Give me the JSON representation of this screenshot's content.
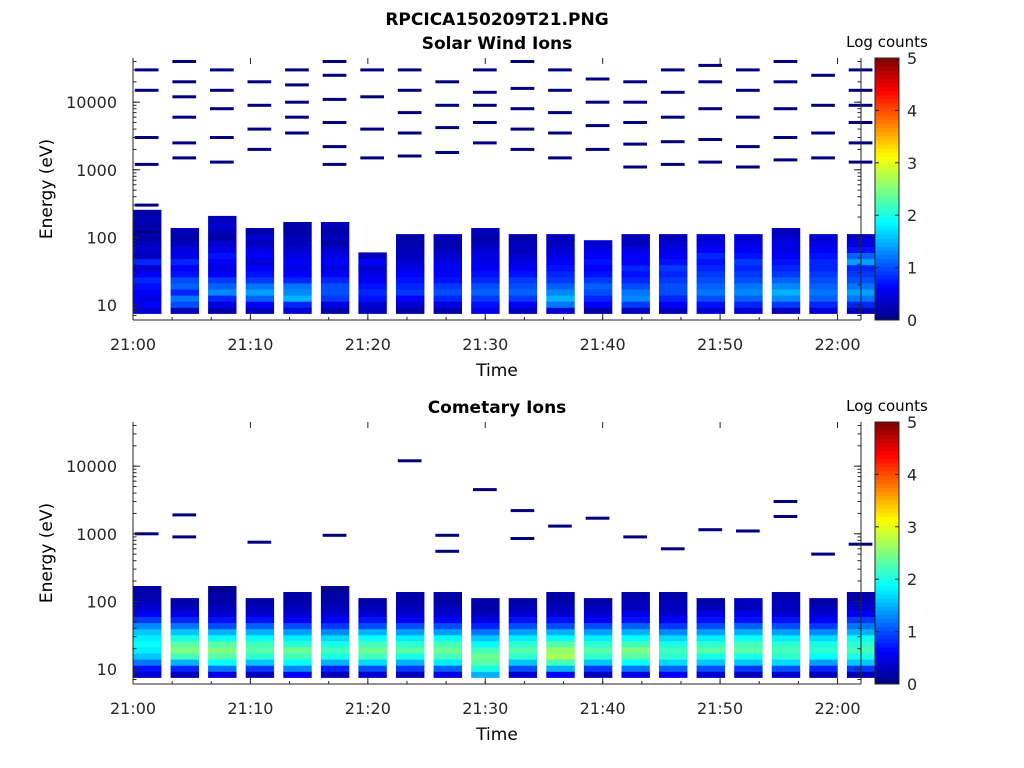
{
  "figure": {
    "title": "RPCICA150209T21.PNG"
  },
  "colormap": {
    "name": "jet",
    "colors": [
      "#00007f",
      "#0000ff",
      "#007fff",
      "#00ffff",
      "#7fff7f",
      "#ffff00",
      "#ff7f00",
      "#ff0000",
      "#7f0000"
    ]
  },
  "chart_data": [
    {
      "type": "heatmap",
      "title": "Solar Wind Ions",
      "xlabel": "Time",
      "ylabel": "Energy (eV)",
      "x_tick_labels": [
        "21:00",
        "21:10",
        "21:20",
        "21:30",
        "21:40",
        "21:50",
        "22:00"
      ],
      "x_range_minutes": [
        0,
        62
      ],
      "y_scale": "log",
      "y_range": [
        6,
        45000
      ],
      "y_tick_values": [
        10,
        100,
        1000,
        10000
      ],
      "y_tick_labels": [
        "10",
        "100",
        "1000",
        "10000"
      ],
      "colorbar": {
        "label": "Log counts",
        "range": [
          0,
          5
        ],
        "tick_labels": [
          "0",
          "1",
          "2",
          "3",
          "4",
          "5"
        ]
      },
      "columns": [
        {
          "t": 0.0,
          "levels": [
            0.4,
            0.6,
            0.5,
            0.6,
            0.7,
            0.8,
            0.6,
            0.4,
            0.8,
            0.3,
            0.4,
            0.3,
            0.2,
            0.3,
            0.2,
            0.3,
            0.2
          ],
          "spikes": [
            120,
            300,
            1200,
            3000,
            15000,
            30000
          ]
        },
        {
          "t": 3.2,
          "levels": [
            0.3,
            1.0,
            1.2,
            0.8,
            1.1,
            1.0,
            0.7,
            0.6,
            0.8,
            0.5,
            0.5,
            0.3,
            0.2,
            0.3
          ],
          "spikes": [
            1500,
            2500,
            6000,
            12000,
            20000,
            40000
          ]
        },
        {
          "t": 6.4,
          "levels": [
            0.2,
            0.5,
            0.8,
            1.3,
            1.1,
            0.9,
            0.6,
            0.5,
            0.6,
            0.7,
            0.5,
            0.4,
            0.2,
            0.3,
            0.4,
            0.3
          ],
          "spikes": [
            1300,
            3000,
            8000,
            15000,
            30000
          ]
        },
        {
          "t": 9.6,
          "levels": [
            0.3,
            0.6,
            1.1,
            1.4,
            1.2,
            0.9,
            0.7,
            0.6,
            0.4,
            0.6,
            0.5,
            0.3,
            0.4,
            0.2
          ],
          "spikes": [
            2000,
            4000,
            9000,
            20000
          ]
        },
        {
          "t": 12.8,
          "levels": [
            0.4,
            0.8,
            1.5,
            1.3,
            1.2,
            0.8,
            0.6,
            0.5,
            0.6,
            0.5,
            0.4,
            0.3,
            0.3,
            0.2,
            0.2
          ],
          "spikes": [
            3500,
            6000,
            10000,
            18000,
            30000
          ]
        },
        {
          "t": 16.0,
          "levels": [
            0.2,
            0.5,
            0.9,
            1.0,
            1.0,
            0.8,
            0.6,
            0.5,
            0.6,
            0.5,
            0.4,
            0.2,
            0.3,
            0.2,
            0.3
          ],
          "spikes": [
            1200,
            2200,
            5000,
            11000,
            25000,
            40000
          ]
        },
        {
          "t": 19.2,
          "levels": [
            0.3,
            0.4,
            0.7,
            0.8,
            0.7,
            0.6,
            0.5,
            0.4,
            0.6,
            0.3
          ],
          "spikes": [
            1500,
            4000,
            12000,
            30000
          ]
        },
        {
          "t": 22.4,
          "levels": [
            0.2,
            0.4,
            0.6,
            0.9,
            0.8,
            0.7,
            0.6,
            0.5,
            0.4,
            0.3,
            0.3,
            0.2,
            0.2
          ],
          "spikes": [
            1600,
            3500,
            7000,
            15000,
            30000
          ]
        },
        {
          "t": 25.6,
          "levels": [
            0.2,
            0.5,
            0.8,
            1.0,
            0.9,
            0.7,
            0.6,
            0.6,
            0.5,
            0.4,
            0.3,
            0.2,
            0.3
          ],
          "spikes": [
            1800,
            4200,
            9000,
            20000
          ]
        },
        {
          "t": 28.8,
          "levels": [
            0.5,
            0.7,
            0.9,
            1.1,
            1.0,
            0.8,
            0.7,
            0.6,
            0.5,
            0.5,
            0.4,
            0.3,
            0.2,
            0.3
          ],
          "spikes": [
            2500,
            5000,
            9000,
            14000,
            30000
          ]
        },
        {
          "t": 32.0,
          "levels": [
            0.3,
            0.6,
            0.9,
            1.1,
            1.0,
            0.9,
            0.7,
            0.6,
            0.5,
            0.4,
            0.3,
            0.3,
            0.2
          ],
          "spikes": [
            2000,
            4000,
            8000,
            16000,
            40000
          ]
        },
        {
          "t": 35.2,
          "levels": [
            0.4,
            1.2,
            1.5,
            1.3,
            1.1,
            0.9,
            0.8,
            0.7,
            0.6,
            0.5,
            0.4,
            0.3,
            0.3
          ],
          "spikes": [
            1500,
            3500,
            7000,
            15000,
            30000
          ]
        },
        {
          "t": 38.4,
          "levels": [
            0.2,
            0.6,
            0.8,
            1.0,
            1.1,
            0.9,
            0.7,
            0.6,
            0.7,
            0.6,
            0.5,
            0.4
          ],
          "spikes": [
            2000,
            4500,
            10000,
            22000
          ]
        },
        {
          "t": 41.6,
          "levels": [
            0.3,
            0.9,
            1.3,
            1.2,
            1.0,
            0.8,
            0.7,
            0.8,
            0.6,
            0.6,
            0.5,
            0.3,
            0.3
          ],
          "spikes": [
            1100,
            2400,
            5000,
            10000,
            20000
          ]
        },
        {
          "t": 44.8,
          "levels": [
            0.3,
            0.6,
            0.8,
            1.0,
            1.0,
            0.9,
            0.8,
            0.9,
            0.7,
            0.6,
            0.5,
            0.4,
            0.3
          ],
          "spikes": [
            1200,
            2600,
            6000,
            14000,
            30000
          ]
        },
        {
          "t": 48.0,
          "levels": [
            0.4,
            0.7,
            1.0,
            1.2,
            1.1,
            1.0,
            0.9,
            0.8,
            0.7,
            0.8,
            0.6,
            0.5,
            0.4
          ],
          "spikes": [
            1300,
            2800,
            8000,
            20000,
            35000
          ]
        },
        {
          "t": 51.2,
          "levels": [
            0.4,
            0.8,
            1.1,
            1.3,
            1.2,
            1.0,
            0.9,
            0.8,
            0.9,
            0.7,
            0.6,
            0.5,
            0.4
          ],
          "spikes": [
            1100,
            2200,
            6000,
            15000,
            30000
          ]
        },
        {
          "t": 54.4,
          "levels": [
            0.3,
            0.9,
            1.3,
            1.5,
            1.3,
            1.1,
            0.9,
            0.8,
            0.7,
            0.6,
            0.5,
            0.5,
            0.4,
            0.3
          ],
          "spikes": [
            1400,
            3000,
            8000,
            20000,
            40000
          ]
        },
        {
          "t": 57.6,
          "levels": [
            0.4,
            0.8,
            1.1,
            1.2,
            1.1,
            1.0,
            0.9,
            0.8,
            0.8,
            0.7,
            0.6,
            0.5,
            0.4
          ],
          "spikes": [
            1500,
            3500,
            9000,
            25000
          ]
        },
        {
          "t": 60.8,
          "levels": [
            0.3,
            0.8,
            1.2,
            1.4,
            1.2,
            1.0,
            0.9,
            0.8,
            1.4,
            1.1,
            0.7,
            0.5,
            0.4
          ],
          "spikes": [
            1300,
            2500,
            5000,
            9000,
            15000,
            30000
          ]
        }
      ]
    },
    {
      "type": "heatmap",
      "title": "Cometary Ions",
      "xlabel": "Time",
      "ylabel": "Energy (eV)",
      "x_tick_labels": [
        "21:00",
        "21:10",
        "21:20",
        "21:30",
        "21:40",
        "21:50",
        "22:00"
      ],
      "x_range_minutes": [
        0,
        62
      ],
      "y_scale": "log",
      "y_range": [
        6,
        45000
      ],
      "y_tick_values": [
        10,
        100,
        1000,
        10000
      ],
      "y_tick_labels": [
        "10",
        "100",
        "1000",
        "10000"
      ],
      "colorbar": {
        "label": "Log counts",
        "range": [
          0,
          5
        ],
        "tick_labels": [
          "0",
          "1",
          "2",
          "3",
          "4",
          "5"
        ]
      },
      "columns": [
        {
          "t": 0.0,
          "levels": [
            0.4,
            0.7,
            1.2,
            1.6,
            1.8,
            1.9,
            1.8,
            1.6,
            1.3,
            0.9,
            0.6,
            0.4,
            0.3,
            0.2,
            0.2
          ],
          "spikes": [
            1000
          ]
        },
        {
          "t": 3.2,
          "levels": [
            0.3,
            0.8,
            1.5,
            2.2,
            2.5,
            2.3,
            2.0,
            1.6,
            1.2,
            0.8,
            0.5,
            0.3,
            0.2
          ],
          "spikes": [
            900,
            1900
          ]
        },
        {
          "t": 6.4,
          "levels": [
            0.5,
            1.2,
            1.9,
            2.3,
            2.5,
            2.3,
            1.9,
            1.5,
            1.0,
            0.7,
            0.4,
            0.3,
            0.2,
            0.2,
            0.1
          ],
          "spikes": []
        },
        {
          "t": 9.6,
          "levels": [
            0.3,
            0.9,
            1.6,
            2.1,
            2.3,
            2.2,
            1.9,
            1.5,
            1.1,
            0.7,
            0.4,
            0.3,
            0.2
          ],
          "spikes": [
            750
          ]
        },
        {
          "t": 12.8,
          "levels": [
            0.6,
            1.3,
            1.9,
            2.2,
            2.4,
            2.1,
            1.8,
            1.4,
            1.0,
            0.6,
            0.4,
            0.3,
            0.2,
            0.2
          ],
          "spikes": []
        },
        {
          "t": 16.0,
          "levels": [
            0.3,
            0.8,
            1.5,
            2.0,
            2.2,
            2.0,
            1.7,
            1.3,
            0.9,
            0.6,
            0.4,
            0.3,
            0.2,
            0.2,
            0.1
          ],
          "spikes": [
            950
          ]
        },
        {
          "t": 19.2,
          "levels": [
            0.4,
            1.0,
            1.7,
            2.2,
            2.4,
            2.2,
            1.9,
            1.5,
            1.0,
            0.7,
            0.4,
            0.3,
            0.2
          ],
          "spikes": []
        },
        {
          "t": 22.4,
          "levels": [
            0.3,
            0.9,
            1.5,
            2.0,
            2.3,
            2.1,
            1.8,
            1.4,
            1.0,
            0.6,
            0.4,
            0.3,
            0.2,
            0.2
          ],
          "spikes": [
            12000
          ]
        },
        {
          "t": 25.6,
          "levels": [
            0.5,
            1.1,
            1.8,
            2.2,
            2.4,
            2.2,
            1.9,
            1.4,
            1.0,
            0.6,
            0.4,
            0.3,
            0.2,
            0.2
          ],
          "spikes": [
            550,
            950
          ]
        },
        {
          "t": 28.8,
          "levels": [
            1.5,
            2.0,
            2.3,
            2.4,
            2.2,
            1.9,
            1.6,
            1.2,
            0.8,
            0.5,
            0.3,
            0.2,
            0.2
          ],
          "spikes": [
            4500
          ]
        },
        {
          "t": 32.0,
          "levels": [
            0.4,
            1.0,
            1.6,
            2.1,
            2.3,
            2.1,
            1.8,
            1.4,
            1.0,
            0.7,
            0.4,
            0.3,
            0.2
          ],
          "spikes": [
            850,
            2200
          ]
        },
        {
          "t": 35.2,
          "levels": [
            0.6,
            1.5,
            2.2,
            2.7,
            2.6,
            2.3,
            1.9,
            1.5,
            1.0,
            0.7,
            0.4,
            0.3,
            0.2,
            0.2
          ],
          "spikes": [
            1300
          ]
        },
        {
          "t": 38.4,
          "levels": [
            0.3,
            0.9,
            1.6,
            2.1,
            2.3,
            2.1,
            1.8,
            1.4,
            1.0,
            0.6,
            0.4,
            0.3,
            0.2
          ],
          "spikes": [
            1700
          ]
        },
        {
          "t": 41.6,
          "levels": [
            0.5,
            1.2,
            1.9,
            2.3,
            2.5,
            2.2,
            1.9,
            1.5,
            1.1,
            0.7,
            0.5,
            0.3,
            0.3,
            0.2
          ],
          "spikes": [
            900
          ]
        },
        {
          "t": 44.8,
          "levels": [
            0.6,
            1.1,
            1.7,
            2.1,
            2.2,
            2.0,
            1.7,
            1.3,
            0.9,
            0.6,
            0.4,
            0.3,
            0.3,
            0.2
          ],
          "spikes": [
            600
          ]
        },
        {
          "t": 48.0,
          "levels": [
            0.4,
            1.0,
            1.6,
            2.0,
            2.3,
            2.1,
            1.8,
            1.4,
            1.0,
            0.7,
            0.5,
            0.3,
            0.2
          ],
          "spikes": [
            1150
          ]
        },
        {
          "t": 51.2,
          "levels": [
            0.3,
            0.9,
            1.6,
            2.0,
            2.3,
            2.2,
            1.9,
            1.5,
            1.1,
            0.7,
            0.5,
            0.3,
            0.3
          ],
          "spikes": [
            1100
          ]
        },
        {
          "t": 54.4,
          "levels": [
            0.4,
            1.0,
            1.7,
            2.1,
            2.2,
            2.1,
            1.8,
            1.4,
            1.0,
            0.7,
            0.4,
            0.3,
            0.3,
            0.2
          ],
          "spikes": [
            1800,
            3000
          ]
        },
        {
          "t": 57.6,
          "levels": [
            0.3,
            0.8,
            1.4,
            1.9,
            2.1,
            2.0,
            1.7,
            1.3,
            0.9,
            0.6,
            0.4,
            0.3,
            0.2
          ],
          "spikes": [
            500
          ]
        },
        {
          "t": 60.8,
          "levels": [
            0.3,
            0.9,
            1.6,
            2.0,
            2.2,
            2.1,
            1.9,
            1.5,
            1.2,
            0.9,
            0.6,
            0.4,
            0.3,
            0.2
          ],
          "spikes": [
            700
          ]
        }
      ]
    }
  ]
}
